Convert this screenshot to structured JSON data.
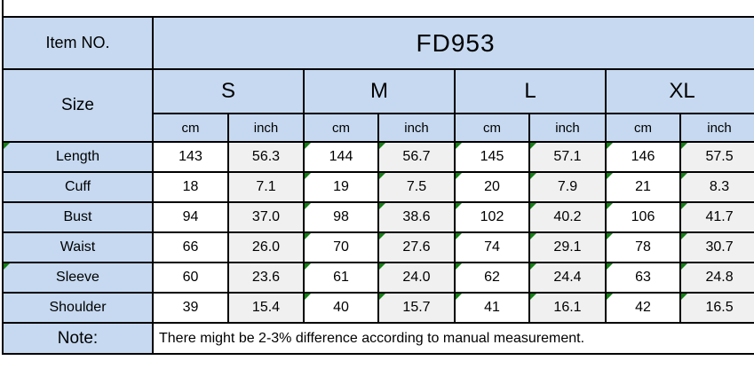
{
  "table": {
    "item_no_label": "Item NO.",
    "item_no_value": "FD953",
    "size_label": "Size",
    "sizes": [
      "S",
      "M",
      "L",
      "XL"
    ],
    "unit_headers": [
      "cm",
      "inch",
      "cm",
      "inch",
      "cm",
      "inch",
      "cm",
      "inch"
    ],
    "rows": [
      {
        "label": "Length",
        "values": [
          "143",
          "56.3",
          "144",
          "56.7",
          "145",
          "57.1",
          "146",
          "57.5"
        ],
        "label_marker": true
      },
      {
        "label": "Cuff",
        "values": [
          "18",
          "7.1",
          "19",
          "7.5",
          "20",
          "7.9",
          "21",
          "8.3"
        ],
        "label_marker": false
      },
      {
        "label": "Bust",
        "values": [
          "94",
          "37.0",
          "98",
          "38.6",
          "102",
          "40.2",
          "106",
          "41.7"
        ],
        "label_marker": false
      },
      {
        "label": "Waist",
        "values": [
          "66",
          "26.0",
          "70",
          "27.6",
          "74",
          "29.1",
          "78",
          "30.7"
        ],
        "label_marker": false
      },
      {
        "label": "Sleeve",
        "values": [
          "60",
          "23.6",
          "61",
          "24.0",
          "62",
          "24.4",
          "63",
          "24.8"
        ],
        "label_marker": true
      },
      {
        "label": "Shoulder",
        "values": [
          "39",
          "15.4",
          "40",
          "15.7",
          "41",
          "16.1",
          "42",
          "16.5"
        ],
        "label_marker": false
      }
    ],
    "marker_columns": [
      2,
      3,
      4,
      5,
      6,
      7
    ],
    "note_label": "Note:",
    "note_text": "There might be 2-3% difference according to manual measurement."
  },
  "colors": {
    "header_fill": "#c6d9f0",
    "cm_fill": "#ffffff",
    "inch_fill": "#f0f0f0",
    "border": "#000000",
    "marker_green": "#168016"
  }
}
